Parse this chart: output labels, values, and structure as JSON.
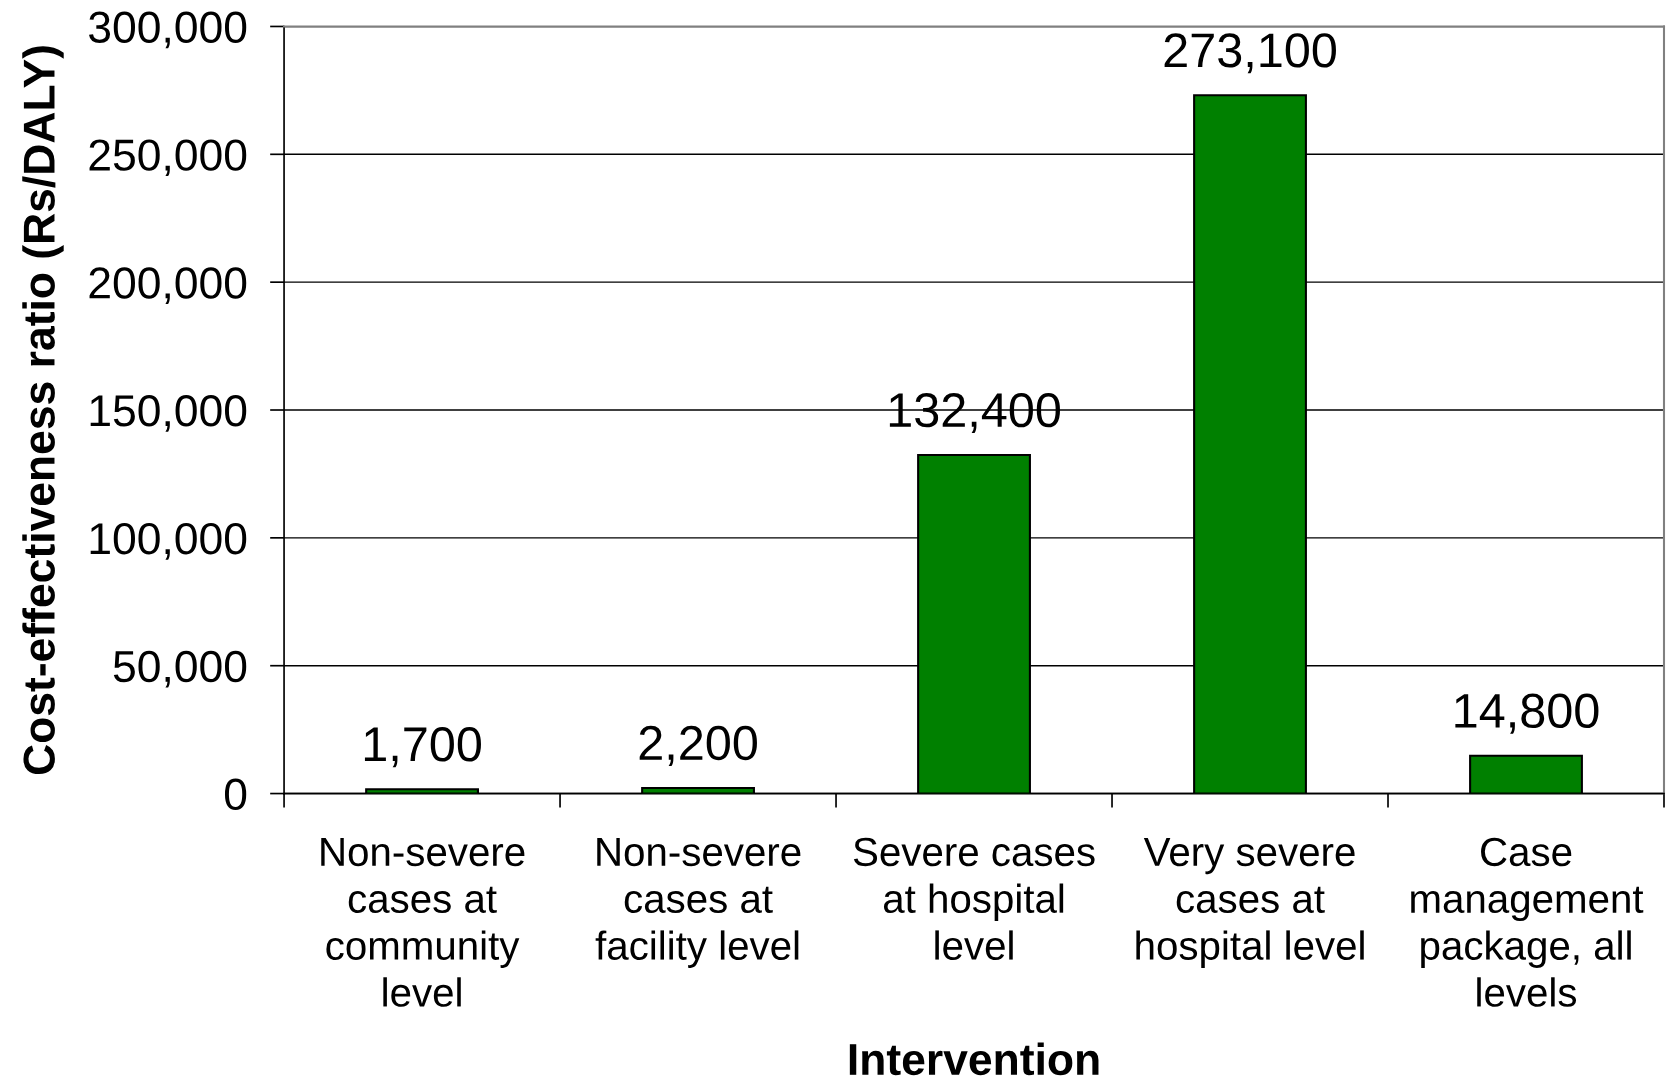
{
  "chart_data": {
    "type": "bar",
    "xlabel": "Intervention",
    "ylabel": "Cost-effectiveness ratio (Rs/DALY)",
    "categories": [
      "Non-severe\ncases at\ncommunity\nlevel",
      "Non-severe\ncases at\nfacility level",
      "Severe cases\nat hospital\nlevel",
      "Very severe\ncases at\nhospital level",
      "Case\nmanagement\npackage, all\nlevels"
    ],
    "values": [
      1700,
      2200,
      132400,
      273100,
      14800
    ],
    "value_labels": [
      "1,700",
      "2,200",
      "132,400",
      "273,100",
      "14,800"
    ],
    "color": "#008000",
    "ylim": [
      0,
      300000
    ],
    "yticks": [
      0,
      {
        "value": 50000,
        "label": "50,000"
      },
      {
        "value": 100000,
        "label": "100,000"
      },
      {
        "value": 150000,
        "label": "150,000"
      },
      {
        "value": 200000,
        "label": "200,000"
      },
      {
        "value": 250000,
        "label": "250,000"
      },
      {
        "value": 300000,
        "label": "300,000"
      }
    ],
    "grid": "y"
  }
}
